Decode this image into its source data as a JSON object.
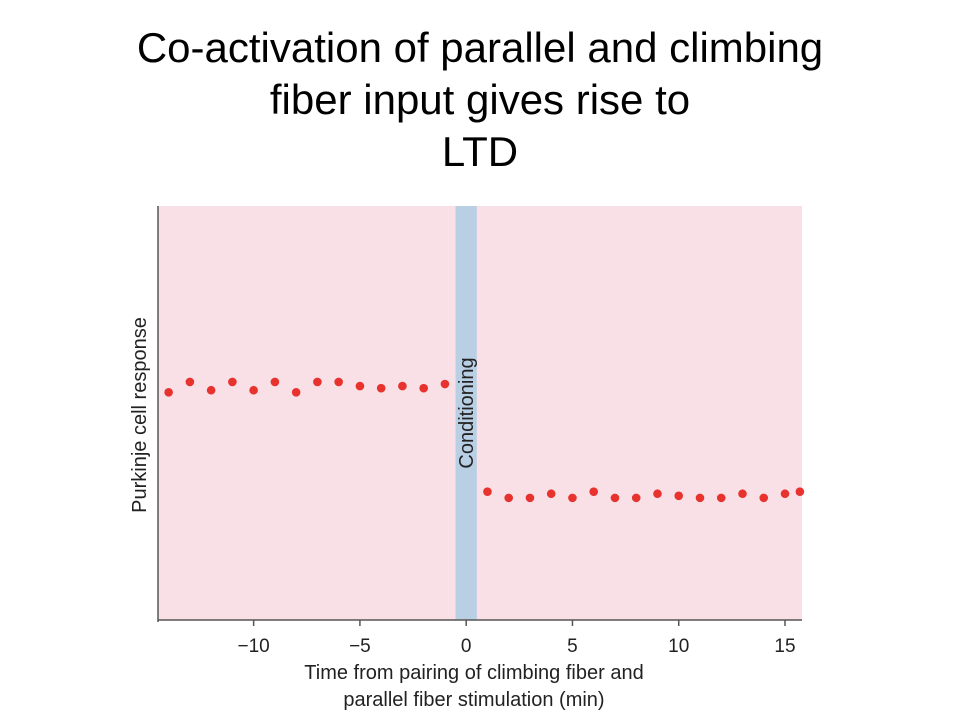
{
  "title_lines": [
    "Co-activation of parallel and climbing",
    "fiber input gives rise to",
    "LTD"
  ],
  "colors": {
    "plot_background": "#f8e0e6",
    "conditioning_band": "#b9d0e4",
    "point": "#e8322e",
    "axis": "#555555"
  },
  "chart_data": {
    "type": "scatter",
    "title": "",
    "xlabel_lines": [
      "Time from pairing of climbing fiber and",
      "parallel fiber stimulation (min)"
    ],
    "ylabel": "Purkinje cell response",
    "xlim": [
      -14.5,
      15.8
    ],
    "ylim": [
      0,
      1
    ],
    "xticks": [
      -10,
      -5,
      0,
      5,
      10,
      15
    ],
    "xtick_labels": [
      "−10",
      "−5",
      "0",
      "5",
      "10",
      "15"
    ],
    "conditioning_band": {
      "x_range": [
        -0.5,
        0.5
      ],
      "label": "Conditioning"
    },
    "grid": false,
    "series": [
      {
        "x": [
          -14,
          -13,
          -12,
          -11,
          -10,
          -9,
          -8,
          -7,
          -6,
          -5,
          -4,
          -3,
          -2,
          -1,
          1,
          2,
          3,
          4,
          5,
          6,
          7,
          8,
          9,
          10,
          11,
          12,
          13,
          14,
          15,
          15.7
        ],
        "y": [
          0.55,
          0.575,
          0.555,
          0.575,
          0.555,
          0.575,
          0.55,
          0.575,
          0.575,
          0.565,
          0.56,
          0.565,
          0.56,
          0.57,
          0.31,
          0.295,
          0.295,
          0.305,
          0.295,
          0.31,
          0.295,
          0.295,
          0.305,
          0.3,
          0.295,
          0.295,
          0.305,
          0.295,
          0.305,
          0.31
        ]
      }
    ]
  }
}
